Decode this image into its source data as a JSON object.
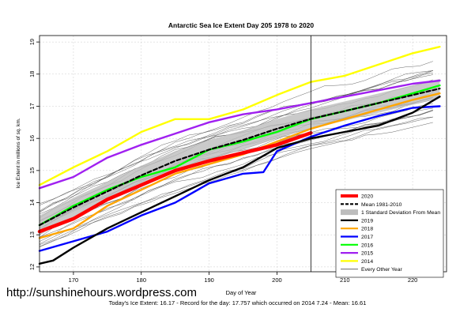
{
  "chart_data": {
    "type": "line",
    "title": "Antarctic Sea Ice Extent Day 205 1978 to 2020",
    "xlabel": "Day of Year",
    "ylabel": "Ice Extent in millions of sq. km.",
    "xlim": [
      165,
      225
    ],
    "ylim": [
      11.85,
      19.2
    ],
    "x_ticks": [
      170,
      180,
      190,
      200,
      210,
      220
    ],
    "y_ticks": [
      12,
      13,
      14,
      15,
      16,
      17,
      18,
      19
    ],
    "marker_day": 205,
    "legend_position": "bottom-right",
    "grid": true,
    "legend": [
      {
        "label": "2020",
        "color": "#ff0000",
        "style": "thick"
      },
      {
        "label": "Mean 1981-2010",
        "color": "#000000",
        "style": "dashed"
      },
      {
        "label": "1 Standard Deviation From Mean",
        "color": "#bdbdbd",
        "style": "band"
      },
      {
        "label": "2019",
        "color": "#000000",
        "style": "solid"
      },
      {
        "label": "2018",
        "color": "#ffa500",
        "style": "solid"
      },
      {
        "label": "2017",
        "color": "#0000ff",
        "style": "solid"
      },
      {
        "label": "2016",
        "color": "#00ff00",
        "style": "solid"
      },
      {
        "label": "2015",
        "color": "#a020f0",
        "style": "solid"
      },
      {
        "label": "2014",
        "color": "#ffff00",
        "style": "solid"
      },
      {
        "label": "Every Other Year",
        "color": "#555555",
        "style": "thin"
      }
    ],
    "series": [
      {
        "name": "2020",
        "color": "#ff0000",
        "x": [
          165,
          170,
          175,
          180,
          185,
          190,
          195,
          200,
          205
        ],
        "y": [
          13.1,
          13.5,
          14.1,
          14.55,
          15.0,
          15.3,
          15.55,
          15.8,
          16.17
        ]
      },
      {
        "name": "Mean 1981-2010",
        "color": "#000000",
        "x": [
          165,
          170,
          175,
          180,
          185,
          190,
          195,
          200,
          205,
          210,
          215,
          220,
          224
        ],
        "y": [
          13.3,
          13.85,
          14.35,
          14.85,
          15.3,
          15.65,
          15.95,
          16.3,
          16.61,
          16.85,
          17.1,
          17.35,
          17.55
        ]
      },
      {
        "name": "1 Standard Deviation From Mean",
        "color": "#bdbdbd",
        "x": [
          165,
          170,
          175,
          180,
          185,
          190,
          195,
          200,
          205,
          210,
          215,
          220,
          224
        ],
        "y": [
          13.3,
          13.85,
          14.35,
          14.85,
          15.3,
          15.65,
          15.95,
          16.3,
          16.61,
          16.85,
          17.1,
          17.35,
          17.55
        ],
        "band": 0.3
      },
      {
        "name": "2019",
        "color": "#000000",
        "x": [
          165,
          167,
          170,
          175,
          180,
          185,
          190,
          195,
          200,
          205,
          210,
          215,
          220,
          224
        ],
        "y": [
          12.1,
          12.2,
          12.6,
          13.2,
          13.7,
          14.2,
          14.7,
          15.1,
          15.7,
          16.0,
          16.2,
          16.4,
          16.8,
          17.3
        ]
      },
      {
        "name": "2018",
        "color": "#ffa500",
        "x": [
          165,
          170,
          175,
          180,
          185,
          190,
          195,
          200,
          205,
          210,
          215,
          220,
          224
        ],
        "y": [
          12.9,
          13.2,
          13.9,
          14.4,
          14.9,
          15.2,
          15.5,
          15.9,
          16.3,
          16.6,
          16.9,
          17.2,
          17.4
        ]
      },
      {
        "name": "2017",
        "color": "#0000ff",
        "x": [
          165,
          170,
          175,
          180,
          185,
          190,
          195,
          198,
          200,
          205,
          210,
          215,
          220,
          224
        ],
        "y": [
          12.5,
          12.8,
          13.1,
          13.6,
          14.0,
          14.6,
          14.9,
          14.95,
          15.6,
          16.05,
          16.4,
          16.7,
          16.95,
          17.0
        ]
      },
      {
        "name": "2016",
        "color": "#00ff00",
        "x": [
          165,
          170,
          175,
          180,
          185,
          190,
          195,
          200,
          205,
          210,
          215,
          220,
          224
        ],
        "y": [
          13.3,
          13.9,
          14.4,
          14.8,
          15.1,
          15.65,
          15.9,
          16.2,
          16.6,
          16.85,
          17.1,
          17.4,
          17.65
        ]
      },
      {
        "name": "2015",
        "color": "#a020f0",
        "x": [
          165,
          170,
          175,
          180,
          185,
          190,
          195,
          200,
          205,
          210,
          215,
          220,
          224
        ],
        "y": [
          14.45,
          14.8,
          15.4,
          15.8,
          16.15,
          16.5,
          16.75,
          16.9,
          17.1,
          17.3,
          17.5,
          17.7,
          17.8
        ]
      },
      {
        "name": "2014",
        "color": "#ffff00",
        "x": [
          165,
          170,
          175,
          180,
          185,
          190,
          195,
          200,
          205,
          210,
          215,
          220,
          224
        ],
        "y": [
          14.55,
          15.1,
          15.6,
          16.2,
          16.6,
          16.6,
          16.9,
          17.35,
          17.757,
          17.95,
          18.3,
          18.65,
          18.85
        ]
      }
    ]
  },
  "page": {
    "watermark": "http://sunshinehours.wordpress.com",
    "footer": "Today's Ice Extent: 16.17  - Record for the day: 17.757 which occurred on 2014 7.24  - Mean: 16.61"
  }
}
